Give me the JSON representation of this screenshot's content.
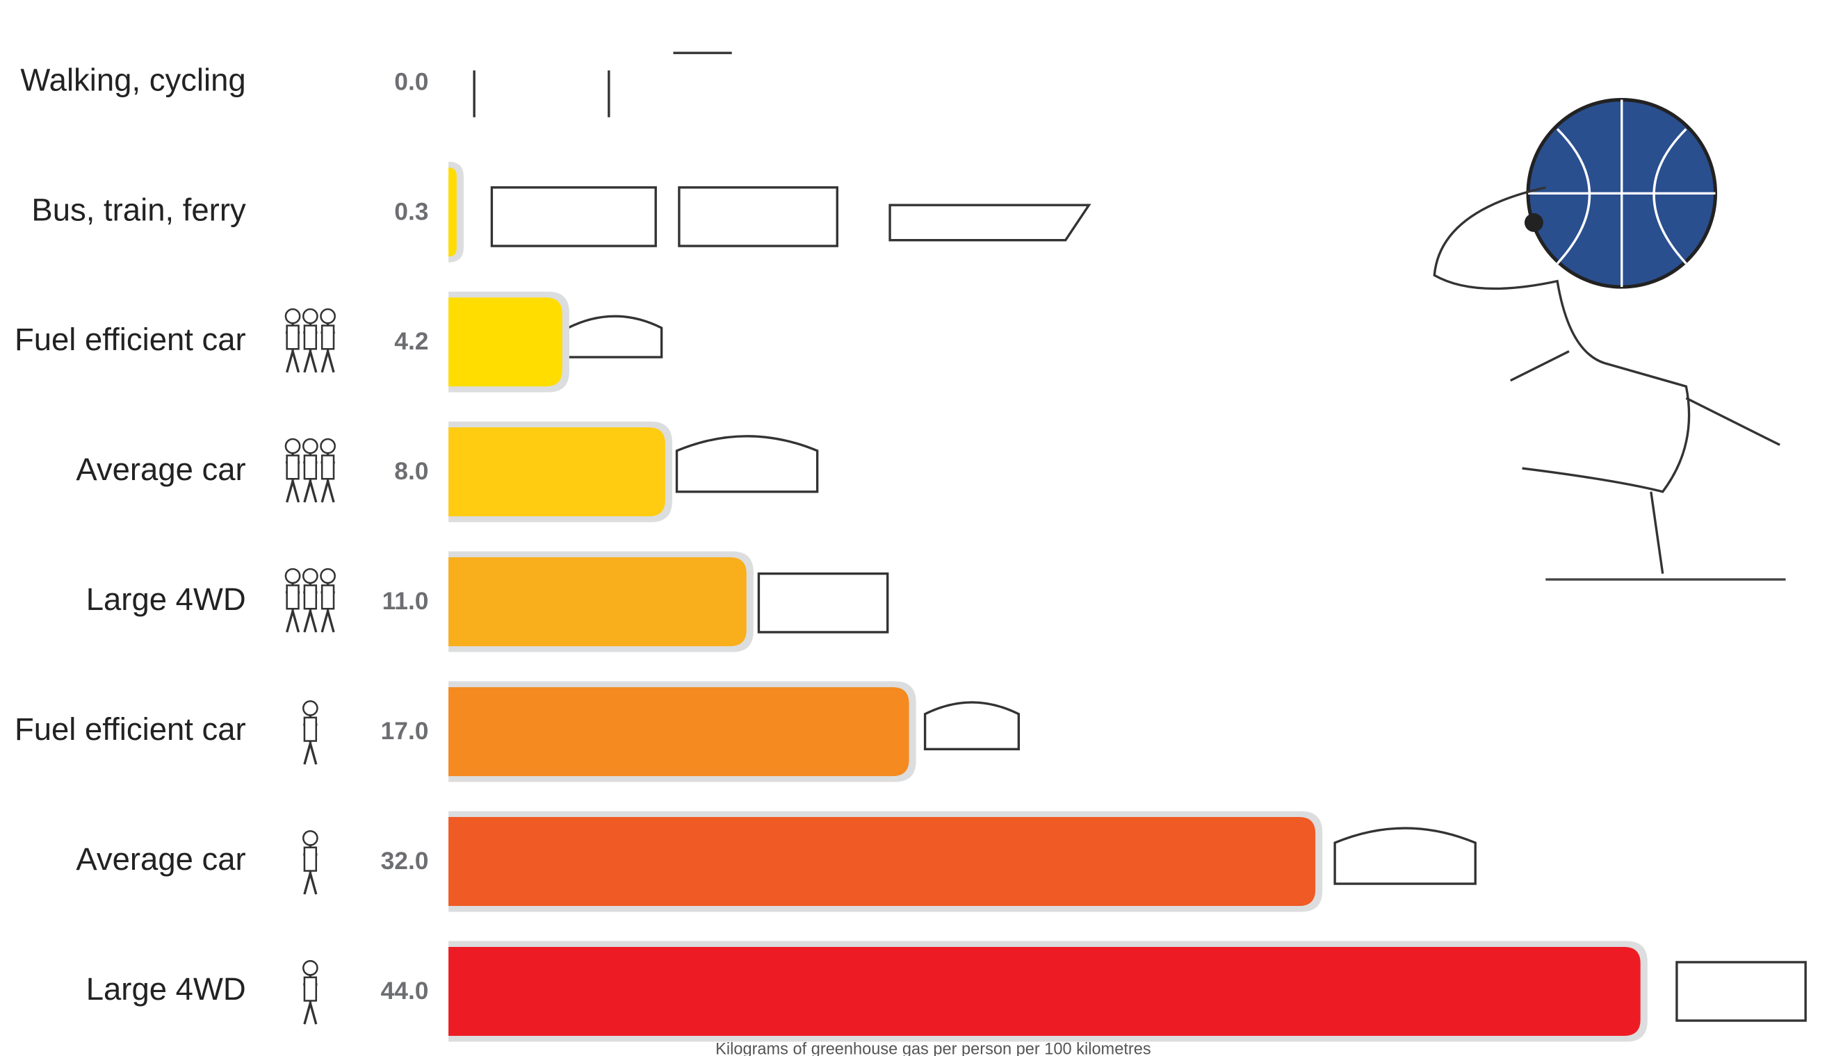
{
  "chart_data": {
    "type": "bar",
    "orientation": "horizontal",
    "x_label": "Kilograms of greenhouse gas per person per 100 kilometres",
    "categories": [
      "Walking, cycling",
      "Bus, train, ferry",
      "Fuel efficient car",
      "Average car",
      "Large 4WD",
      "Fuel efficient car",
      "Average car",
      "Large 4WD"
    ],
    "values": [
      0.0,
      0.3,
      4.2,
      8.0,
      11.0,
      17.0,
      32.0,
      44.0
    ],
    "value_labels": [
      "0.0",
      "0.3",
      "4.2",
      "8.0",
      "11.0",
      "17.0",
      "32.0",
      "44.0"
    ],
    "colors": [
      "#FFE600",
      "#FFDD00",
      "#FFDD00",
      "#FFCC11",
      "#F9AE1B",
      "#F48A20",
      "#F05A24",
      "#ED1C24"
    ],
    "outline_color": "#DCDDDE"
  }
}
